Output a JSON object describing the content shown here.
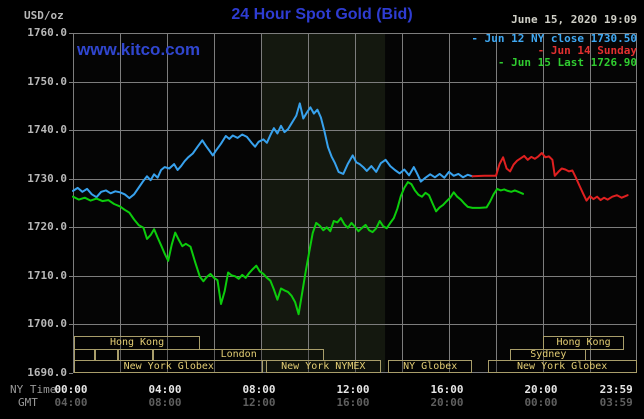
{
  "header": {
    "units_label": "USD/oz",
    "title": "24 Hour Spot Gold (Bid)",
    "datetime": "June 15, 2020 19:09",
    "watermark": "www.kitco.com"
  },
  "legend": [
    {
      "label": "- Jun 12 NY close 1730.50",
      "color": "#3fa8f2"
    },
    {
      "label": "- Jun 14 Sunday",
      "color": "#e23030"
    },
    {
      "label": "- Jun 15 Last 1726.90",
      "color": "#30cc30"
    }
  ],
  "axis": {
    "ny_time_label": "NY Time",
    "gmt_label": "GMT",
    "ny_time_ticks": [
      "00:00",
      "04:00",
      "08:00",
      "12:00",
      "16:00",
      "20:00",
      "23:59"
    ],
    "gmt_ticks": [
      "04:00",
      "08:00",
      "12:00",
      "16:00",
      "20:00",
      "00:00",
      "03:59"
    ],
    "tick_hours": [
      0,
      4,
      8,
      12,
      16,
      20,
      23.2
    ],
    "y_labels": [
      "1760.0",
      "1750.0",
      "1740.0",
      "1730.0",
      "1720.0",
      "1710.0",
      "1700.0",
      "1690.0"
    ]
  },
  "sessions": [
    {
      "row": 1,
      "label": "Hong Kong",
      "start": 0.05,
      "end": 5.4
    },
    {
      "row": 1,
      "label": "Hong Kong",
      "start": 20.0,
      "end": 23.45
    },
    {
      "row": 2,
      "label": "",
      "start": 0.05,
      "end": 0.95
    },
    {
      "row": 2,
      "label": "",
      "start": 0.95,
      "end": 1.9
    },
    {
      "row": 2,
      "label": "",
      "start": 1.9,
      "end": 3.4
    },
    {
      "row": 2,
      "label": "London",
      "start": 3.4,
      "end": 10.7
    },
    {
      "row": 2,
      "label": "Sydney",
      "start": 18.6,
      "end": 21.85
    },
    {
      "row": 3,
      "label": "New York Globex",
      "start": 0.05,
      "end": 8.1
    },
    {
      "row": 3,
      "label": "New York NYMEX",
      "start": 8.2,
      "end": 13.1
    },
    {
      "row": 3,
      "label": "NY Globex",
      "start": 13.4,
      "end": 17.0
    },
    {
      "row": 3,
      "label": "New York Globex",
      "start": 17.65,
      "end": 23.98
    }
  ],
  "colors": {
    "background": "#000000",
    "plot_background": "#050505",
    "grid": "#7d7d7d",
    "highlight_band": "#14180f",
    "session_border": "#a99e6a",
    "session_text": "#e3cd74",
    "blue_line": "#38a2ee",
    "red_line": "#e02020",
    "green_line": "#0ccc0c",
    "title_blue": "#2e3cd2"
  },
  "chart_data": {
    "type": "line",
    "title": "24 Hour Spot Gold (Bid)",
    "ylabel": "USD/oz",
    "xlabel": "NY Time (hours 00:00-23:59)",
    "ylim": [
      1690,
      1760
    ],
    "xlim": [
      0,
      24
    ],
    "grid": true,
    "legend_position": "top-right",
    "highlight_band_hours": {
      "start": 8.0,
      "end": 13.28
    },
    "series": [
      {
        "name": "Jun 12 NY close 1730.50",
        "color": "#38a2ee",
        "points": [
          [
            0,
            1727.5
          ],
          [
            0.2,
            1728.1
          ],
          [
            0.4,
            1727.3
          ],
          [
            0.6,
            1727.9
          ],
          [
            0.8,
            1726.8
          ],
          [
            1.0,
            1726.2
          ],
          [
            1.2,
            1727.3
          ],
          [
            1.4,
            1727.6
          ],
          [
            1.6,
            1727.0
          ],
          [
            1.8,
            1727.4
          ],
          [
            2.0,
            1727.2
          ],
          [
            2.2,
            1726.8
          ],
          [
            2.4,
            1726.0
          ],
          [
            2.6,
            1726.8
          ],
          [
            2.8,
            1728.2
          ],
          [
            3.0,
            1729.6
          ],
          [
            3.15,
            1730.5
          ],
          [
            3.3,
            1729.7
          ],
          [
            3.45,
            1730.9
          ],
          [
            3.6,
            1730.2
          ],
          [
            3.75,
            1731.8
          ],
          [
            3.9,
            1732.4
          ],
          [
            4.1,
            1732.1
          ],
          [
            4.3,
            1733.0
          ],
          [
            4.45,
            1731.8
          ],
          [
            4.6,
            1732.6
          ],
          [
            4.75,
            1733.6
          ],
          [
            4.9,
            1734.4
          ],
          [
            5.1,
            1735.2
          ],
          [
            5.3,
            1736.6
          ],
          [
            5.5,
            1737.9
          ],
          [
            5.65,
            1736.8
          ],
          [
            5.8,
            1735.8
          ],
          [
            5.95,
            1734.8
          ],
          [
            6.1,
            1735.9
          ],
          [
            6.3,
            1737.2
          ],
          [
            6.5,
            1738.8
          ],
          [
            6.65,
            1738.2
          ],
          [
            6.8,
            1738.9
          ],
          [
            7.0,
            1738.4
          ],
          [
            7.2,
            1739.1
          ],
          [
            7.4,
            1738.6
          ],
          [
            7.6,
            1737.4
          ],
          [
            7.75,
            1736.6
          ],
          [
            7.9,
            1737.6
          ],
          [
            8.1,
            1738.1
          ],
          [
            8.25,
            1737.4
          ],
          [
            8.4,
            1739.0
          ],
          [
            8.55,
            1740.4
          ],
          [
            8.7,
            1739.3
          ],
          [
            8.85,
            1740.9
          ],
          [
            9.0,
            1739.6
          ],
          [
            9.15,
            1740.2
          ],
          [
            9.3,
            1741.4
          ],
          [
            9.5,
            1743.0
          ],
          [
            9.65,
            1745.5
          ],
          [
            9.8,
            1742.4
          ],
          [
            9.95,
            1743.6
          ],
          [
            10.1,
            1744.7
          ],
          [
            10.25,
            1743.4
          ],
          [
            10.4,
            1744.2
          ],
          [
            10.55,
            1742.6
          ],
          [
            10.7,
            1739.8
          ],
          [
            10.85,
            1736.5
          ],
          [
            11.0,
            1734.6
          ],
          [
            11.15,
            1733.2
          ],
          [
            11.3,
            1731.4
          ],
          [
            11.5,
            1731.0
          ],
          [
            11.7,
            1733.1
          ],
          [
            11.9,
            1734.8
          ],
          [
            12.05,
            1733.4
          ],
          [
            12.2,
            1733.0
          ],
          [
            12.35,
            1732.4
          ],
          [
            12.5,
            1731.6
          ],
          [
            12.7,
            1732.6
          ],
          [
            12.9,
            1731.4
          ],
          [
            13.1,
            1733.2
          ],
          [
            13.3,
            1733.9
          ],
          [
            13.5,
            1732.6
          ],
          [
            13.7,
            1731.8
          ],
          [
            13.9,
            1731.1
          ],
          [
            14.1,
            1731.9
          ],
          [
            14.3,
            1730.7
          ],
          [
            14.5,
            1732.4
          ],
          [
            14.65,
            1731.0
          ],
          [
            14.8,
            1729.4
          ],
          [
            15.0,
            1730.2
          ],
          [
            15.2,
            1730.9
          ],
          [
            15.4,
            1730.3
          ],
          [
            15.6,
            1731.0
          ],
          [
            15.8,
            1730.2
          ],
          [
            16.0,
            1731.4
          ],
          [
            16.2,
            1730.6
          ],
          [
            16.4,
            1731.0
          ],
          [
            16.6,
            1730.3
          ],
          [
            16.8,
            1730.8
          ],
          [
            17.0,
            1730.5
          ]
        ]
      },
      {
        "name": "Jun 14 Sunday",
        "color": "#e02020",
        "points": [
          [
            17.0,
            1730.5
          ],
          [
            17.5,
            1730.6
          ],
          [
            18.0,
            1730.6
          ],
          [
            18.15,
            1733.0
          ],
          [
            18.3,
            1734.4
          ],
          [
            18.45,
            1732.1
          ],
          [
            18.6,
            1731.5
          ],
          [
            18.75,
            1732.9
          ],
          [
            18.9,
            1733.7
          ],
          [
            19.05,
            1734.2
          ],
          [
            19.2,
            1734.7
          ],
          [
            19.35,
            1733.9
          ],
          [
            19.5,
            1734.5
          ],
          [
            19.65,
            1734.1
          ],
          [
            19.8,
            1734.6
          ],
          [
            19.95,
            1735.3
          ],
          [
            20.1,
            1734.4
          ],
          [
            20.25,
            1734.6
          ],
          [
            20.4,
            1733.9
          ],
          [
            20.5,
            1730.6
          ],
          [
            20.65,
            1731.4
          ],
          [
            20.8,
            1732.1
          ],
          [
            20.95,
            1731.9
          ],
          [
            21.1,
            1731.5
          ],
          [
            21.25,
            1731.7
          ],
          [
            21.4,
            1730.2
          ],
          [
            21.55,
            1728.6
          ],
          [
            21.7,
            1727.0
          ],
          [
            21.85,
            1725.5
          ],
          [
            22.0,
            1726.4
          ],
          [
            22.15,
            1725.8
          ],
          [
            22.3,
            1726.3
          ],
          [
            22.45,
            1725.6
          ],
          [
            22.6,
            1726.1
          ],
          [
            22.75,
            1725.7
          ],
          [
            22.95,
            1726.3
          ],
          [
            23.15,
            1726.6
          ],
          [
            23.35,
            1726.1
          ],
          [
            23.6,
            1726.6
          ]
        ]
      },
      {
        "name": "Jun 15 Last 1726.90",
        "color": "#0ccc0c",
        "points": [
          [
            0,
            1726.3
          ],
          [
            0.25,
            1725.7
          ],
          [
            0.5,
            1726.1
          ],
          [
            0.75,
            1725.5
          ],
          [
            1.0,
            1725.9
          ],
          [
            1.25,
            1725.4
          ],
          [
            1.5,
            1725.6
          ],
          [
            1.75,
            1724.8
          ],
          [
            2.0,
            1724.3
          ],
          [
            2.2,
            1723.6
          ],
          [
            2.4,
            1723.0
          ],
          [
            2.6,
            1721.6
          ],
          [
            2.8,
            1720.4
          ],
          [
            3.0,
            1719.9
          ],
          [
            3.15,
            1717.6
          ],
          [
            3.3,
            1718.4
          ],
          [
            3.45,
            1719.6
          ],
          [
            3.6,
            1717.9
          ],
          [
            3.75,
            1716.3
          ],
          [
            3.9,
            1714.6
          ],
          [
            4.05,
            1713.1
          ],
          [
            4.2,
            1716.4
          ],
          [
            4.35,
            1718.9
          ],
          [
            4.5,
            1717.4
          ],
          [
            4.65,
            1716.1
          ],
          [
            4.8,
            1716.6
          ],
          [
            5.0,
            1716.0
          ],
          [
            5.2,
            1712.8
          ],
          [
            5.4,
            1709.8
          ],
          [
            5.55,
            1708.9
          ],
          [
            5.7,
            1709.8
          ],
          [
            5.85,
            1710.4
          ],
          [
            6.0,
            1709.6
          ],
          [
            6.15,
            1709.1
          ],
          [
            6.3,
            1704.2
          ],
          [
            6.45,
            1706.8
          ],
          [
            6.6,
            1710.7
          ],
          [
            6.75,
            1710.1
          ],
          [
            6.9,
            1709.9
          ],
          [
            7.05,
            1709.4
          ],
          [
            7.2,
            1710.2
          ],
          [
            7.35,
            1709.6
          ],
          [
            7.5,
            1710.6
          ],
          [
            7.65,
            1711.4
          ],
          [
            7.8,
            1712.1
          ],
          [
            7.95,
            1710.9
          ],
          [
            8.1,
            1710.4
          ],
          [
            8.25,
            1709.6
          ],
          [
            8.4,
            1709.0
          ],
          [
            8.55,
            1707.2
          ],
          [
            8.7,
            1705.1
          ],
          [
            8.85,
            1707.4
          ],
          [
            9.0,
            1707.0
          ],
          [
            9.15,
            1706.7
          ],
          [
            9.3,
            1705.9
          ],
          [
            9.45,
            1704.6
          ],
          [
            9.6,
            1702.1
          ],
          [
            9.75,
            1706.4
          ],
          [
            9.9,
            1710.8
          ],
          [
            10.05,
            1714.9
          ],
          [
            10.2,
            1718.8
          ],
          [
            10.35,
            1720.9
          ],
          [
            10.5,
            1720.3
          ],
          [
            10.65,
            1719.4
          ],
          [
            10.8,
            1720.0
          ],
          [
            10.95,
            1719.2
          ],
          [
            11.1,
            1721.3
          ],
          [
            11.25,
            1721.0
          ],
          [
            11.4,
            1721.9
          ],
          [
            11.55,
            1720.6
          ],
          [
            11.7,
            1719.9
          ],
          [
            11.85,
            1720.9
          ],
          [
            12.0,
            1720.1
          ],
          [
            12.15,
            1719.2
          ],
          [
            12.3,
            1719.9
          ],
          [
            12.45,
            1720.5
          ],
          [
            12.6,
            1719.4
          ],
          [
            12.75,
            1719.0
          ],
          [
            12.9,
            1719.8
          ],
          [
            13.05,
            1721.3
          ],
          [
            13.2,
            1720.2
          ],
          [
            13.35,
            1719.8
          ],
          [
            13.5,
            1720.9
          ],
          [
            13.65,
            1721.9
          ],
          [
            13.8,
            1723.8
          ],
          [
            13.95,
            1726.4
          ],
          [
            14.1,
            1728.1
          ],
          [
            14.25,
            1729.3
          ],
          [
            14.4,
            1728.9
          ],
          [
            14.55,
            1727.6
          ],
          [
            14.7,
            1726.7
          ],
          [
            14.85,
            1726.3
          ],
          [
            15.0,
            1727.1
          ],
          [
            15.15,
            1726.6
          ],
          [
            15.3,
            1724.9
          ],
          [
            15.45,
            1723.3
          ],
          [
            15.6,
            1724.1
          ],
          [
            15.75,
            1724.6
          ],
          [
            15.9,
            1725.4
          ],
          [
            16.05,
            1726.1
          ],
          [
            16.2,
            1727.2
          ],
          [
            16.35,
            1726.3
          ],
          [
            16.5,
            1725.7
          ],
          [
            16.65,
            1724.9
          ],
          [
            16.8,
            1724.2
          ],
          [
            17.0,
            1724.0
          ],
          [
            17.3,
            1724.0
          ],
          [
            17.6,
            1724.1
          ],
          [
            17.75,
            1725.3
          ],
          [
            17.9,
            1726.8
          ],
          [
            18.05,
            1727.9
          ],
          [
            18.2,
            1727.6
          ],
          [
            18.35,
            1727.8
          ],
          [
            18.5,
            1727.5
          ],
          [
            18.65,
            1727.3
          ],
          [
            18.8,
            1727.6
          ],
          [
            18.95,
            1727.3
          ],
          [
            19.15,
            1726.9
          ]
        ]
      }
    ]
  }
}
